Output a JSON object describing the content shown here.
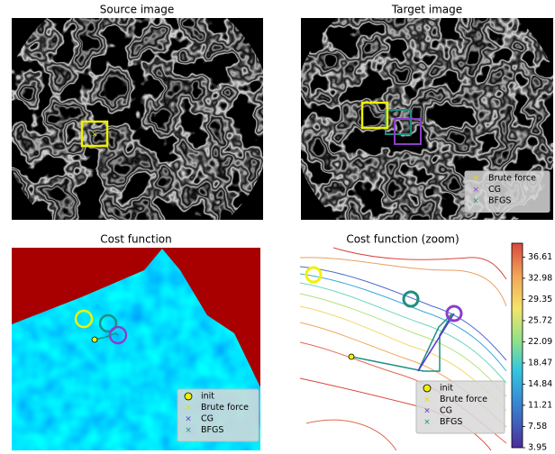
{
  "chart_data": [
    {
      "type": "image",
      "title": "Source image"
    },
    {
      "type": "image",
      "title": "Target image",
      "series": [
        {
          "name": "Brute force",
          "color": "#e8e000",
          "marker": "x"
        },
        {
          "name": "CG",
          "color": "#8a3fc8",
          "marker": "x"
        },
        {
          "name": "BFGS",
          "color": "#1f8f80",
          "marker": "x"
        }
      ]
    },
    {
      "type": "heatmap",
      "title": "Cost function",
      "series": [
        {
          "name": "init",
          "color": "#f2f200",
          "marker": "o"
        },
        {
          "name": "Brute force",
          "color": "#e8e000",
          "marker": "x"
        },
        {
          "name": "CG",
          "color": "#5a2fd8",
          "marker": "x"
        },
        {
          "name": "BFGS",
          "color": "#1f8f80",
          "marker": "x"
        }
      ]
    },
    {
      "type": "contour",
      "title": "Cost function (zoom)",
      "series": [
        {
          "name": "init",
          "color": "#f2f200",
          "marker": "o"
        },
        {
          "name": "Brute force",
          "color": "#e8e000",
          "marker": "x"
        },
        {
          "name": "CG",
          "color": "#5a2fd8",
          "marker": "x"
        },
        {
          "name": "BFGS",
          "color": "#1f8f80",
          "marker": "x"
        }
      ],
      "clim": [
        3.95,
        38.98
      ],
      "cticks": [
        3.95,
        7.58,
        11.21,
        14.84,
        18.47,
        22.09,
        25.72,
        29.35,
        32.98,
        36.61
      ]
    }
  ]
}
